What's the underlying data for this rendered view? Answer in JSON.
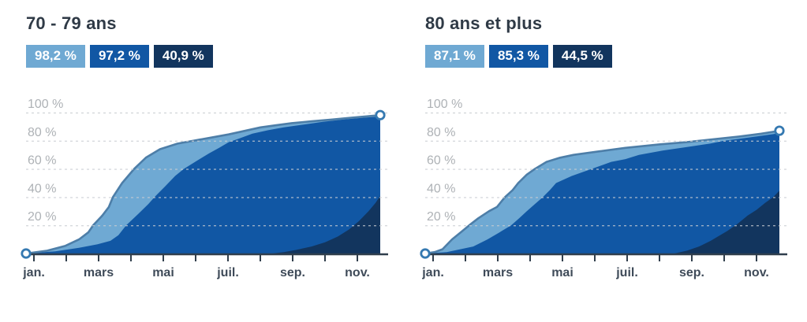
{
  "colors": {
    "background": "#ffffff",
    "first_dose": "#6fa9d3",
    "fully_vaccinated": "#1157a4",
    "booster": "#12355e",
    "line": "#4d7ea8",
    "grid": "#c9cdd2",
    "axis": "#303e4c",
    "y_label": "#aeb2b6",
    "x_label": "#3f4b59",
    "title": "#2f3a46",
    "marker": "#3579b1",
    "marker_fill": "#ffffff"
  },
  "y_axis": {
    "ticks": [
      {
        "value": 100,
        "label": "100 %"
      },
      {
        "value": 80,
        "label": "80 %"
      },
      {
        "value": 60,
        "label": "60 %"
      },
      {
        "value": 40,
        "label": "40 %"
      },
      {
        "value": 20,
        "label": "20 %"
      }
    ]
  },
  "x_axis": {
    "tick_labels": [
      "jan.",
      "mars",
      "mai",
      "juil.",
      "sep.",
      "nov."
    ]
  },
  "chart_data": [
    {
      "type": "area",
      "title": "70 - 79 ans",
      "x_unit": "months since 1 jan. (0 = jan., 11.5 = mid-dec.)",
      "x_range": [
        0,
        11.5
      ],
      "y_range": [
        0,
        100
      ],
      "grid": "dotted",
      "series": [
        {
          "name": "first-dose",
          "label": "98,2 %",
          "final_value": 98.2,
          "color": "#6fa9d3",
          "points": [
            [
              0,
              0
            ],
            [
              0.69,
              2
            ],
            [
              1.28,
              5.5
            ],
            [
              1.72,
              10
            ],
            [
              2.02,
              15
            ],
            [
              2.18,
              20
            ],
            [
              2.48,
              27
            ],
            [
              2.69,
              33
            ],
            [
              2.82,
              40
            ],
            [
              3.12,
              50
            ],
            [
              3.51,
              60
            ],
            [
              3.89,
              68
            ],
            [
              4.35,
              74
            ],
            [
              4.92,
              78
            ],
            [
              5.43,
              80
            ],
            [
              6.07,
              82.5
            ],
            [
              6.58,
              84.5
            ],
            [
              7.09,
              87
            ],
            [
              7.61,
              89.5
            ],
            [
              8.12,
              91
            ],
            [
              8.63,
              92.5
            ],
            [
              9.27,
              93.8
            ],
            [
              9.91,
              95
            ],
            [
              10.55,
              96.3
            ],
            [
              11.06,
              97.3
            ],
            [
              11.5,
              98.2
            ]
          ]
        },
        {
          "name": "fully-vaccinated",
          "label": "97,2 %",
          "final_value": 97.2,
          "color": "#1157a4",
          "points": [
            [
              0,
              0
            ],
            [
              0.95,
              1.5
            ],
            [
              1.72,
              4
            ],
            [
              2.31,
              6.5
            ],
            [
              2.74,
              9
            ],
            [
              3.0,
              13
            ],
            [
              3.25,
              20
            ],
            [
              3.64,
              28
            ],
            [
              3.97,
              35
            ],
            [
              4.17,
              40
            ],
            [
              4.53,
              48
            ],
            [
              4.84,
              55
            ],
            [
              5.12,
              60
            ],
            [
              5.56,
              66
            ],
            [
              5.94,
              71
            ],
            [
              6.27,
              75
            ],
            [
              6.58,
              79
            ],
            [
              6.97,
              82
            ],
            [
              7.35,
              85
            ],
            [
              7.86,
              87.5
            ],
            [
              8.37,
              89.5
            ],
            [
              9.01,
              91.5
            ],
            [
              9.66,
              93.5
            ],
            [
              10.3,
              95
            ],
            [
              10.94,
              96.3
            ],
            [
              11.5,
              97.2
            ]
          ]
        },
        {
          "name": "booster",
          "label": "40,9 %",
          "final_value": 40.9,
          "color": "#12355e",
          "points": [
            [
              0,
              0
            ],
            [
              7.99,
              0
            ],
            [
              8.37,
              1
            ],
            [
              8.76,
              2.5
            ],
            [
              9.27,
              5
            ],
            [
              9.71,
              8
            ],
            [
              10.12,
              12
            ],
            [
              10.48,
              17
            ],
            [
              10.81,
              23
            ],
            [
              11.12,
              30
            ],
            [
              11.35,
              36
            ],
            [
              11.5,
              40.9
            ]
          ]
        }
      ]
    },
    {
      "type": "area",
      "title": "80 ans et plus",
      "x_unit": "months since 1 jan. (0 = jan., 11.5 = mid-dec.)",
      "x_range": [
        0,
        11.5
      ],
      "y_range": [
        0,
        100
      ],
      "grid": "dotted",
      "series": [
        {
          "name": "first-dose",
          "label": "87,1 %",
          "final_value": 87.1,
          "color": "#6fa9d3",
          "points": [
            [
              0,
              0
            ],
            [
              0.31,
              1
            ],
            [
              0.56,
              3
            ],
            [
              0.87,
              10
            ],
            [
              1.15,
              15
            ],
            [
              1.43,
              20
            ],
            [
              1.72,
              25
            ],
            [
              2.07,
              30
            ],
            [
              2.33,
              33
            ],
            [
              2.59,
              40
            ],
            [
              2.84,
              45
            ],
            [
              3.02,
              50
            ],
            [
              3.3,
              56
            ],
            [
              3.56,
              60
            ],
            [
              3.94,
              65
            ],
            [
              4.38,
              68
            ],
            [
              4.82,
              70
            ],
            [
              5.66,
              72.5
            ],
            [
              6.5,
              75
            ],
            [
              7.63,
              77.5
            ],
            [
              8.48,
              79
            ],
            [
              9.32,
              81
            ],
            [
              10.19,
              83
            ],
            [
              10.91,
              85
            ],
            [
              11.5,
              87.1
            ]
          ]
        },
        {
          "name": "fully-vaccinated",
          "label": "85,3 %",
          "final_value": 85.3,
          "color": "#1157a4",
          "points": [
            [
              0,
              0
            ],
            [
              0.7,
              1
            ],
            [
              1.56,
              5
            ],
            [
              2.02,
              10
            ],
            [
              2.41,
              15
            ],
            [
              2.79,
              20
            ],
            [
              3.05,
              25
            ],
            [
              3.3,
              30
            ],
            [
              3.56,
              35
            ],
            [
              3.82,
              40
            ],
            [
              4.05,
              45
            ],
            [
              4.25,
              50
            ],
            [
              4.76,
              55
            ],
            [
              5.4,
              60
            ],
            [
              6.04,
              65
            ],
            [
              6.5,
              67
            ],
            [
              6.94,
              70
            ],
            [
              7.71,
              73
            ],
            [
              8.63,
              76
            ],
            [
              9.25,
              78
            ],
            [
              9.71,
              80
            ],
            [
              10.4,
              82
            ],
            [
              10.91,
              83.5
            ],
            [
              11.5,
              85.3
            ]
          ]
        },
        {
          "name": "booster",
          "label": "44,5 %",
          "final_value": 44.5,
          "color": "#12355e",
          "points": [
            [
              0,
              0
            ],
            [
              8.09,
              0
            ],
            [
              8.5,
              2
            ],
            [
              8.89,
              5
            ],
            [
              9.27,
              9
            ],
            [
              9.5,
              12
            ],
            [
              9.81,
              16
            ],
            [
              10.14,
              21
            ],
            [
              10.47,
              27
            ],
            [
              10.76,
              31
            ],
            [
              11.04,
              36
            ],
            [
              11.3,
              40
            ],
            [
              11.5,
              44.5
            ]
          ]
        }
      ]
    }
  ]
}
